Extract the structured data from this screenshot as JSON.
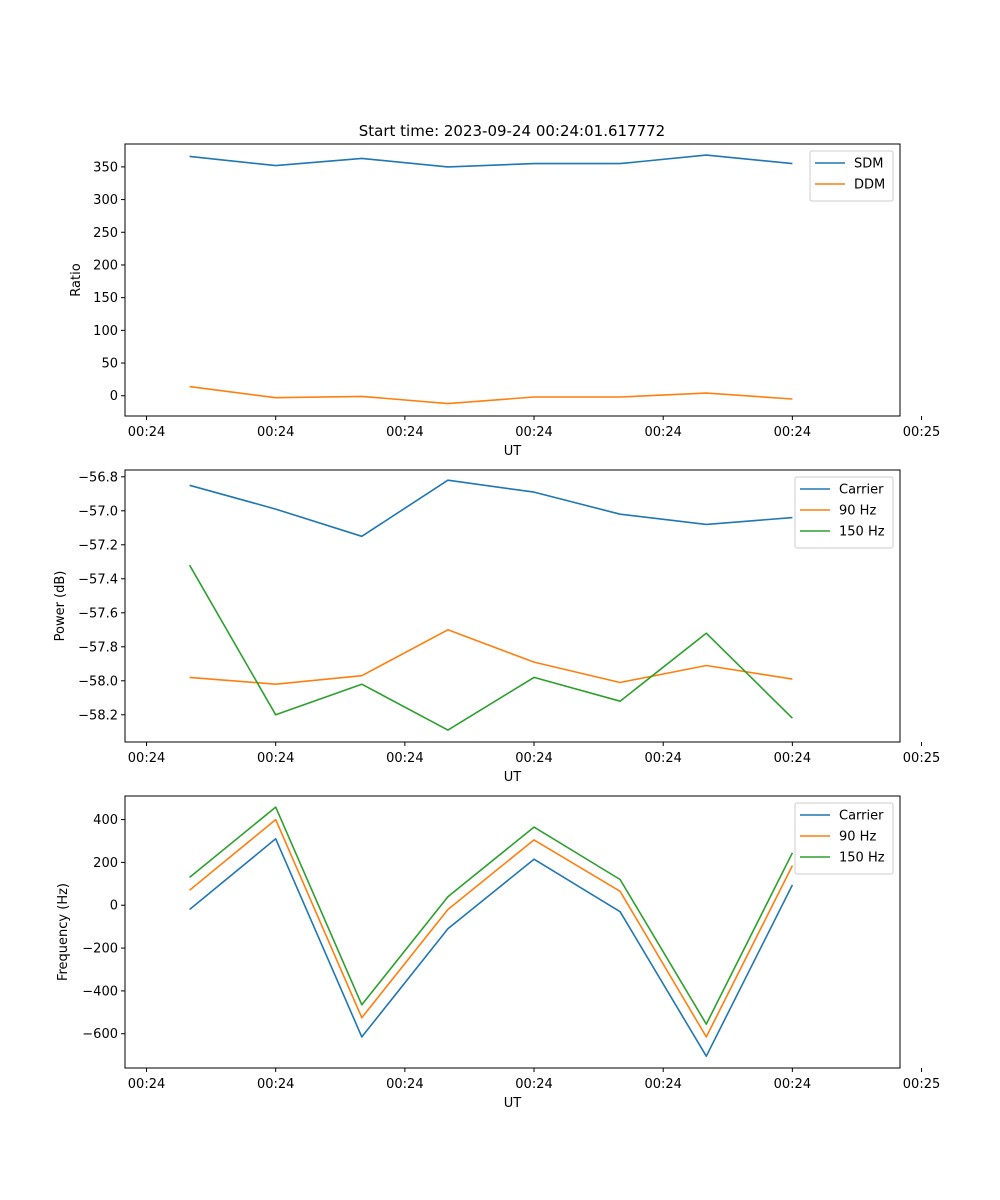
{
  "chart_data": [
    {
      "type": "line",
      "title": "Start time: 2023-09-24 00:24:01.617772",
      "xlabel": "UT",
      "ylabel": "Ratio",
      "x": [
        1,
        2,
        3,
        4,
        5,
        6,
        7,
        8
      ],
      "xlim": [
        0.25,
        9.25
      ],
      "xticks": [
        0.5,
        2.0,
        3.5,
        5.0,
        6.5,
        8.0,
        9.5
      ],
      "xtick_labels": [
        "00:24",
        "00:24",
        "00:24",
        "00:24",
        "00:24",
        "00:24",
        "00:25"
      ],
      "ylim": [
        -31,
        385
      ],
      "yticks": [
        0,
        50,
        100,
        150,
        200,
        250,
        300,
        350
      ],
      "ytick_labels": [
        "0",
        "50",
        "100",
        "150",
        "200",
        "250",
        "300",
        "350"
      ],
      "legend": "top-right",
      "series": [
        {
          "name": "SDM",
          "color": "#1f77b4",
          "values": [
            366,
            352,
            363,
            350,
            355,
            355,
            368,
            355
          ]
        },
        {
          "name": "DDM",
          "color": "#ff7f0e",
          "values": [
            14,
            -3,
            -1,
            -12,
            -2,
            -2,
            4,
            -5
          ]
        }
      ]
    },
    {
      "type": "line",
      "title": "",
      "xlabel": "UT",
      "ylabel": "Power (dB)",
      "x": [
        1,
        2,
        3,
        4,
        5,
        6,
        7,
        8
      ],
      "xlim": [
        0.25,
        9.25
      ],
      "xticks": [
        0.5,
        2.0,
        3.5,
        5.0,
        6.5,
        8.0,
        9.5
      ],
      "xtick_labels": [
        "00:24",
        "00:24",
        "00:24",
        "00:24",
        "00:24",
        "00:24",
        "00:25"
      ],
      "ylim": [
        -58.36,
        -56.76
      ],
      "yticks": [
        -58.2,
        -58.0,
        -57.8,
        -57.6,
        -57.4,
        -57.2,
        -57.0,
        -56.8
      ],
      "ytick_labels": [
        "−58.2",
        "−58.0",
        "−57.8",
        "−57.6",
        "−57.4",
        "−57.2",
        "−57.0",
        "−56.8"
      ],
      "legend": "top-right",
      "series": [
        {
          "name": "Carrier",
          "color": "#1f77b4",
          "values": [
            -56.85,
            -56.99,
            -57.15,
            -56.82,
            -56.89,
            -57.02,
            -57.08,
            -57.04
          ]
        },
        {
          "name": "90 Hz",
          "color": "#ff7f0e",
          "values": [
            -57.98,
            -58.02,
            -57.97,
            -57.7,
            -57.89,
            -58.01,
            -57.91,
            -57.99
          ]
        },
        {
          "name": "150 Hz",
          "color": "#2ca02c",
          "values": [
            -57.32,
            -58.2,
            -58.02,
            -58.29,
            -57.98,
            -58.12,
            -57.72,
            -58.22
          ]
        }
      ]
    },
    {
      "type": "line",
      "title": "",
      "xlabel": "UT",
      "ylabel": "Frequency (Hz)",
      "x": [
        1,
        2,
        3,
        4,
        5,
        6,
        7,
        8
      ],
      "xlim": [
        0.25,
        9.25
      ],
      "xticks": [
        0.5,
        2.0,
        3.5,
        5.0,
        6.5,
        8.0,
        9.5
      ],
      "xtick_labels": [
        "00:24",
        "00:24",
        "00:24",
        "00:24",
        "00:24",
        "00:24",
        "00:25"
      ],
      "ylim": [
        -760,
        510
      ],
      "yticks": [
        -600,
        -400,
        -200,
        0,
        200,
        400
      ],
      "ytick_labels": [
        "−600",
        "−400",
        "−200",
        "0",
        "200",
        "400"
      ],
      "legend": "top-right",
      "series": [
        {
          "name": "Carrier",
          "color": "#1f77b4",
          "values": [
            -20,
            310,
            -615,
            -110,
            215,
            -30,
            -705,
            95
          ]
        },
        {
          "name": "90 Hz",
          "color": "#ff7f0e",
          "values": [
            70,
            400,
            -525,
            -20,
            305,
            65,
            -615,
            185
          ]
        },
        {
          "name": "150 Hz",
          "color": "#2ca02c",
          "values": [
            130,
            458,
            -465,
            40,
            365,
            120,
            -555,
            245
          ]
        }
      ]
    }
  ]
}
